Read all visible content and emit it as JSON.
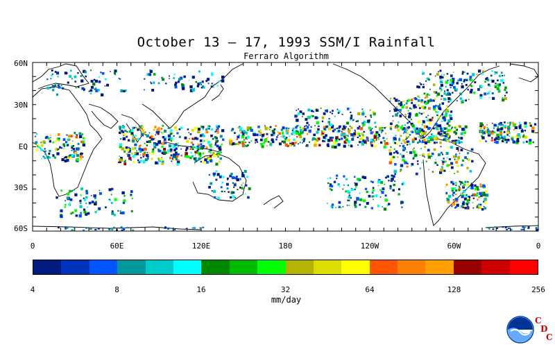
{
  "title": "October 13 – 17, 1993 SSM/I Rainfall",
  "subtitle": "Ferraro Algorithm",
  "map": {
    "lat_labels": [
      "60N",
      "30N",
      "EQ",
      "30S",
      "60S"
    ],
    "lon_labels": [
      "0",
      "60E",
      "120E",
      "180",
      "120W",
      "60W",
      "0"
    ]
  },
  "colorbar": {
    "colors": [
      "#001a80",
      "#0033bb",
      "#0055ff",
      "#009999",
      "#00cccc",
      "#00ffff",
      "#008800",
      "#00bb00",
      "#00ff00",
      "#b3b300",
      "#dddd00",
      "#ffff00",
      "#ff5500",
      "#ff7f00",
      "#ff9f00",
      "#990000",
      "#cc0000",
      "#ff0000"
    ],
    "tick_labels": [
      "4",
      "8",
      "16",
      "32",
      "64",
      "128",
      "256"
    ],
    "unit": "mm/day"
  },
  "branding": {
    "logo": "noaa-logo",
    "cdc_letters": [
      "C",
      "D",
      "C"
    ]
  }
}
